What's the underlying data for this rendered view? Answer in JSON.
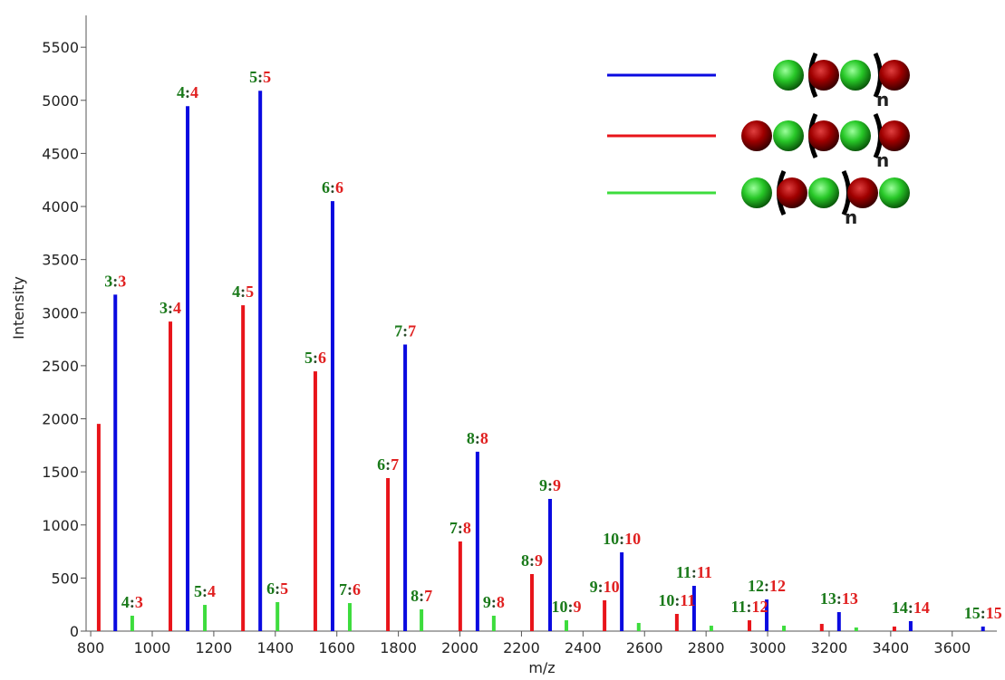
{
  "chart_data": {
    "type": "spectrum",
    "x_label": "m/z",
    "y_label": "Intensity",
    "xlim": [
      785,
      3745
    ],
    "ylim": [
      0,
      5800
    ],
    "xticks": [
      800,
      1000,
      1200,
      1400,
      1600,
      1800,
      2000,
      2200,
      2400,
      2600,
      2800,
      3000,
      3200,
      3400,
      3600
    ],
    "yticks": [
      0,
      500,
      1000,
      1500,
      2000,
      2500,
      3000,
      3500,
      4000,
      4500,
      5000,
      5500
    ],
    "label_separator": ":",
    "legend_subscript": "n",
    "series": [
      {
        "color": "#0a0ae0",
        "x": [
          880,
          1115,
          1351,
          1586,
          1822,
          2057,
          2293,
          2526,
          2761,
          2997,
          3232,
          3465,
          3700
        ],
        "values": [
          3170,
          4945,
          5090,
          4050,
          2700,
          1690,
          1245,
          742,
          426,
          298,
          179,
          94,
          43
        ],
        "peak_labels": [
          [
            "3",
            "3"
          ],
          [
            "4",
            "4"
          ],
          [
            "5",
            "5"
          ],
          [
            "6",
            "6"
          ],
          [
            "7",
            "7"
          ],
          [
            "8",
            "8"
          ],
          [
            "9",
            "9"
          ],
          [
            "10",
            "10"
          ],
          [
            "11",
            "11"
          ],
          [
            "12",
            "12"
          ],
          [
            "13",
            "13"
          ],
          [
            "14",
            "14"
          ],
          [
            "15",
            "15"
          ]
        ]
      },
      {
        "color": "#e8141a",
        "x": [
          826,
          1059,
          1295,
          1530,
          1766,
          2001,
          2234,
          2470,
          2705,
          2941,
          3176,
          3412
        ],
        "values": [
          1952,
          2916,
          3069,
          2447,
          1441,
          844,
          537,
          290,
          162,
          102,
          68,
          43
        ],
        "peak_labels": [
          null,
          [
            "3",
            "4"
          ],
          [
            "4",
            "5"
          ],
          [
            "5",
            "6"
          ],
          [
            "6",
            "7"
          ],
          [
            "7",
            "8"
          ],
          [
            "8",
            "9"
          ],
          [
            "9",
            "10"
          ],
          [
            "10",
            "11"
          ],
          [
            "11",
            "12"
          ],
          null,
          null
        ]
      },
      {
        "color": "#3ddc3d",
        "x": [
          935,
          1171,
          1407,
          1642,
          1875,
          2110,
          2346,
          2581,
          2817,
          3053,
          3288
        ],
        "values": [
          145,
          247,
          273,
          264,
          205,
          145,
          102,
          77,
          51,
          51,
          34
        ],
        "peak_labels": [
          [
            "4",
            "3"
          ],
          [
            "5",
            "4"
          ],
          [
            "6",
            "5"
          ],
          [
            "7",
            "6"
          ],
          [
            "8",
            "7"
          ],
          [
            "9",
            "8"
          ],
          [
            "10",
            "9"
          ],
          null,
          null,
          null,
          null
        ]
      }
    ]
  }
}
